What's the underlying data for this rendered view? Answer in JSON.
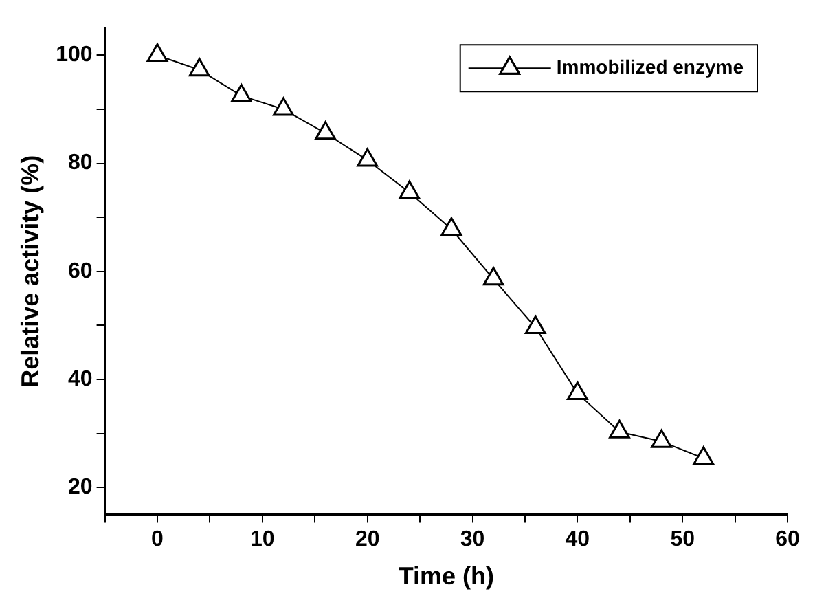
{
  "chart_data": {
    "type": "line",
    "xlabel": "Time (h)",
    "ylabel": "Relative activity (%)",
    "x": [
      0,
      4,
      8,
      12,
      16,
      20,
      24,
      28,
      32,
      36,
      40,
      44,
      48,
      52
    ],
    "series": [
      {
        "name": "Immobilized enzyme",
        "color": "#000000",
        "values": [
          100,
          97.3,
          92.5,
          90,
          85.6,
          80.6,
          74.6,
          67.8,
          58.6,
          49.6,
          37.4,
          30.3,
          28.5,
          25.4
        ]
      }
    ],
    "xlim": [
      -5,
      60
    ],
    "xticks": [
      {
        "value": -5,
        "label": null
      },
      0,
      {
        "value": 5,
        "label": null
      },
      10,
      {
        "value": 15,
        "label": null
      },
      20,
      {
        "value": 25,
        "label": null
      },
      30,
      {
        "value": 35,
        "label": null
      },
      40,
      {
        "value": 45,
        "label": null
      },
      50,
      {
        "value": 55,
        "label": null
      },
      60
    ],
    "ylim": [
      15,
      105
    ],
    "yticks": [
      20,
      {
        "value": 30,
        "label": null
      },
      40,
      {
        "value": 50,
        "label": null
      },
      60,
      {
        "value": 70,
        "label": null
      },
      80,
      {
        "value": 90,
        "label": null
      },
      100
    ],
    "grid": false,
    "legend": "top right",
    "marker": "triangle",
    "line_style": "solid"
  }
}
